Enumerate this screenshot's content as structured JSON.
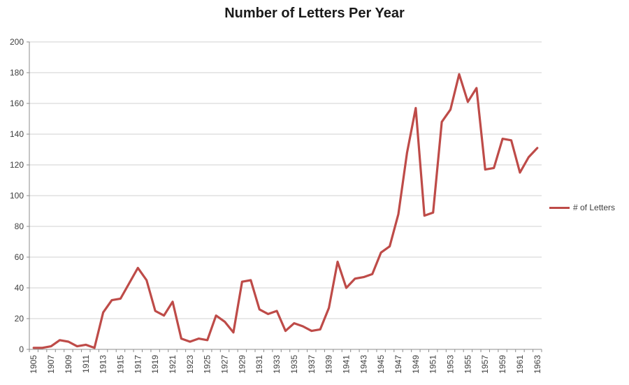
{
  "chart": {
    "colors": {
      "series": "#BE4B48",
      "gridline": "#D2D2D2",
      "axis": "#8C8C8C",
      "tick_label": "#3F3F3F",
      "title": "#1A1A1A",
      "background": "#FFFFFF"
    }
  },
  "chart_data": {
    "type": "line",
    "title": "Number of Letters Per Year",
    "xlabel": "",
    "ylabel": "",
    "ylim": [
      0,
      200
    ],
    "ytick_step": 20,
    "xtick_label_every": 2,
    "grid": "horizontal",
    "legend_position": "right",
    "x": [
      1905,
      1906,
      1907,
      1908,
      1909,
      1910,
      1911,
      1912,
      1913,
      1914,
      1915,
      1916,
      1917,
      1918,
      1919,
      1920,
      1921,
      1922,
      1923,
      1924,
      1925,
      1926,
      1927,
      1928,
      1929,
      1930,
      1931,
      1932,
      1933,
      1934,
      1935,
      1936,
      1937,
      1938,
      1939,
      1940,
      1941,
      1942,
      1943,
      1944,
      1945,
      1946,
      1947,
      1948,
      1949,
      1950,
      1951,
      1952,
      1953,
      1954,
      1955,
      1956,
      1957,
      1958,
      1959,
      1960,
      1961,
      1962,
      1963
    ],
    "series": [
      {
        "name": "# of Letters",
        "values": [
          1,
          1,
          2,
          6,
          5,
          2,
          3,
          1,
          24,
          32,
          33,
          43,
          53,
          45,
          25,
          22,
          31,
          7,
          5,
          7,
          6,
          22,
          18,
          11,
          44,
          45,
          26,
          23,
          25,
          12,
          17,
          15,
          12,
          13,
          27,
          57,
          40,
          46,
          47,
          49,
          63,
          67,
          88,
          128,
          157,
          87,
          89,
          148,
          156,
          179,
          161,
          170,
          117,
          118,
          137,
          136,
          115,
          125,
          131
        ]
      }
    ]
  }
}
